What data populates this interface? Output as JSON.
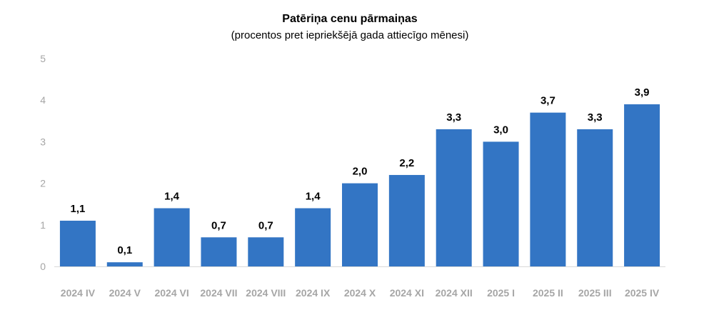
{
  "chart_data": {
    "type": "bar",
    "title": "Patēriņa cenu pārmaiņas",
    "subtitle": "(procentos pret iepriekšējā gada attiecīgo mēnesi)",
    "categories": [
      "2024 IV",
      "2024 V",
      "2024 VI",
      "2024 VII",
      "2024 VIII",
      "2024 IX",
      "2024 X",
      "2024 XI",
      "2024 XII",
      "2025 I",
      "2025 II",
      "2025 III",
      "2025 IV"
    ],
    "values": [
      1.1,
      0.1,
      1.4,
      0.7,
      0.7,
      1.4,
      2.0,
      2.2,
      3.3,
      3.0,
      3.7,
      3.3,
      3.9
    ],
    "data_labels": [
      "1,1",
      "0,1",
      "1,4",
      "0,7",
      "0,7",
      "1,4",
      "2,0",
      "2,2",
      "3,3",
      "3,0",
      "3,7",
      "3,3",
      "3,9"
    ],
    "y_ticks": [
      "0",
      "1",
      "2",
      "3",
      "4",
      "5"
    ],
    "ylim": [
      0,
      5
    ],
    "grid": false,
    "legend": "none",
    "bar_color": "#3375c4",
    "tick_color": "#a6a6a6",
    "axis_color": "#d9d9d9"
  }
}
